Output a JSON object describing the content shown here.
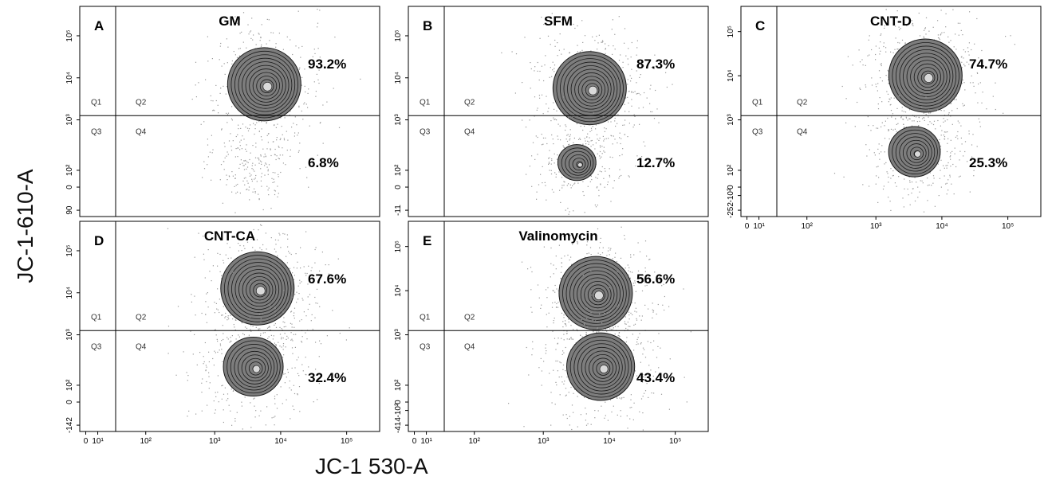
{
  "figure": {
    "ylabel": "JC-1-610-A",
    "xlabel": "JC-1 530-A"
  },
  "colors": {
    "axis": "#000000",
    "contour_fill": "#7d7d7d",
    "contour_line": "#1a1a1a",
    "dots": "#9a9a9a",
    "core": "#d9d9d9"
  },
  "chart_data": [
    {
      "type": "scatter",
      "panel": "A",
      "title": "GM",
      "quadrants": [
        {
          "name": "Q1",
          "label": "Q1"
        },
        {
          "name": "Q2",
          "label": "Q2",
          "percent": "93.2%",
          "value": 93.2
        },
        {
          "name": "Q3",
          "label": "Q3"
        },
        {
          "name": "Q4",
          "label": "Q4",
          "percent": "6.8%",
          "value": 6.8
        }
      ],
      "x_scale": "log",
      "y_scale": "log",
      "y_ticks": [
        "10⁵",
        "10⁴",
        "10³",
        "10²",
        "0",
        "90"
      ],
      "x_ticks": [],
      "populations": [
        {
          "x": 4500,
          "y": 6000,
          "level": 1.0,
          "contour": true
        },
        {
          "x": 3000,
          "y": 120,
          "level": 0.2,
          "contour": false
        }
      ]
    },
    {
      "type": "scatter",
      "panel": "B",
      "title": "SFM",
      "quadrants": [
        {
          "name": "Q1",
          "label": "Q1"
        },
        {
          "name": "Q2",
          "label": "Q2",
          "percent": "87.3%",
          "value": 87.3
        },
        {
          "name": "Q3",
          "label": "Q3"
        },
        {
          "name": "Q4",
          "label": "Q4",
          "percent": "12.7%",
          "value": 12.7
        }
      ],
      "x_scale": "log",
      "y_scale": "log",
      "y_ticks": [
        "10⁵",
        "10⁴",
        "10³",
        "10²",
        "0",
        "-11"
      ],
      "x_ticks": [],
      "populations": [
        {
          "x": 4000,
          "y": 5000,
          "level": 1.0,
          "contour": true
        },
        {
          "x": 2500,
          "y": 150,
          "level": 0.35,
          "contour": true
        }
      ]
    },
    {
      "type": "scatter",
      "panel": "C",
      "title": "CNT-D",
      "quadrants": [
        {
          "name": "Q1",
          "label": "Q1"
        },
        {
          "name": "Q2",
          "label": "Q2",
          "percent": "74.7%",
          "value": 74.7
        },
        {
          "name": "Q3",
          "label": "Q3"
        },
        {
          "name": "Q4",
          "label": "Q4",
          "percent": "25.3%",
          "value": 25.3
        }
      ],
      "x_scale": "log",
      "y_scale": "log",
      "y_ticks": [
        "10⁵",
        "10⁴",
        "10³",
        "10²",
        "0",
        "-10²",
        "-252"
      ],
      "x_ticks": [
        "0",
        "10¹",
        "10²",
        "10³",
        "10⁴",
        "10⁵"
      ],
      "populations": [
        {
          "x": 4500,
          "y": 9000,
          "level": 1.0,
          "contour": true
        },
        {
          "x": 3000,
          "y": 250,
          "level": 0.6,
          "contour": true
        }
      ]
    },
    {
      "type": "scatter",
      "panel": "D",
      "title": "CNT-CA",
      "quadrants": [
        {
          "name": "Q1",
          "label": "Q1"
        },
        {
          "name": "Q2",
          "label": "Q2",
          "percent": "67.6%",
          "value": 67.6
        },
        {
          "name": "Q3",
          "label": "Q3"
        },
        {
          "name": "Q4",
          "label": "Q4",
          "percent": "32.4%",
          "value": 32.4
        }
      ],
      "x_scale": "log",
      "y_scale": "log",
      "y_ticks": [
        "10⁵",
        "10⁴",
        "10³",
        "10²",
        "0",
        "-142"
      ],
      "x_ticks": [
        "0",
        "10¹",
        "10²",
        "10³",
        "10⁴",
        "10⁵"
      ],
      "populations": [
        {
          "x": 3500,
          "y": 10000,
          "level": 1.0,
          "contour": true
        },
        {
          "x": 3000,
          "y": 250,
          "level": 0.75,
          "contour": true
        }
      ]
    },
    {
      "type": "scatter",
      "panel": "E",
      "title": "Valinomycin",
      "quadrants": [
        {
          "name": "Q1",
          "label": "Q1"
        },
        {
          "name": "Q2",
          "label": "Q2",
          "percent": "56.6%",
          "value": 56.6
        },
        {
          "name": "Q3",
          "label": "Q3"
        },
        {
          "name": "Q4",
          "label": "Q4",
          "percent": "43.4%",
          "value": 43.4
        }
      ],
      "x_scale": "log",
      "y_scale": "log",
      "y_ticks": [
        "10⁵",
        "10⁴",
        "10³",
        "10²",
        "0",
        "-10²",
        "-414"
      ],
      "x_ticks": [
        "0",
        "10¹",
        "10²",
        "10³",
        "10⁴",
        "10⁵"
      ],
      "populations": [
        {
          "x": 5000,
          "y": 8000,
          "level": 1.0,
          "contour": true
        },
        {
          "x": 6000,
          "y": 250,
          "level": 0.9,
          "contour": true
        }
      ]
    }
  ]
}
